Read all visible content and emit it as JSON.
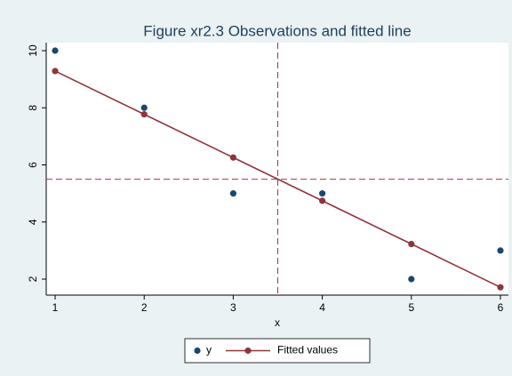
{
  "chart_data": {
    "type": "scatter",
    "title": "Figure xr2.3 Observations and fitted line",
    "x_label": "x",
    "x": [
      1,
      2,
      3,
      4,
      5,
      6
    ],
    "series": [
      {
        "name": "y",
        "color": "#1a476f",
        "mode": "markers",
        "values": [
          10,
          8,
          5,
          5,
          2,
          3
        ]
      },
      {
        "name": "Fitted values",
        "color": "#90353b",
        "mode": "lines+markers",
        "values": [
          9.286,
          7.771,
          6.257,
          4.743,
          3.229,
          1.714
        ]
      }
    ],
    "xline": 3.5,
    "yline": 5.5,
    "ref_color": "#b0304a",
    "xlim": [
      0.9,
      6.09
    ],
    "ylim": [
      1.44,
      10.28
    ],
    "xticks": [
      1,
      2,
      3,
      4,
      5,
      6
    ],
    "yticks": [
      2,
      4,
      6,
      8,
      10
    ],
    "grid": false,
    "legend_position": "bottom"
  }
}
